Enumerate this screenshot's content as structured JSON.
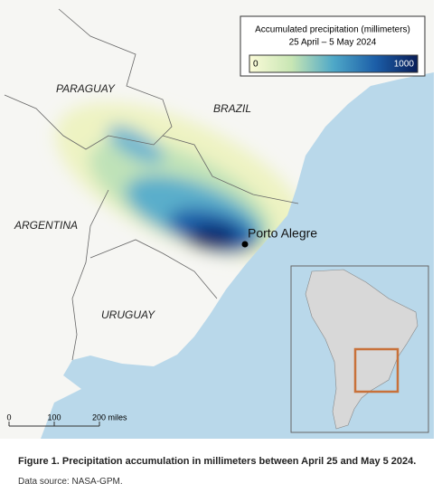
{
  "legend": {
    "title": "Accumulated precipitation (millimeters)",
    "subtitle": "25 April – 5 May 2024",
    "min": 0,
    "max": 1000
  },
  "labels": {
    "paraguay": "PARAGUAY",
    "brazil": "BRAZIL",
    "argentina": "ARGENTINA",
    "uruguay": "URUGUAY",
    "city": "Porto Alegre"
  },
  "scale_bar": {
    "ticks": [
      0,
      100,
      {
        "value": 200,
        "label": "200 miles"
      }
    ]
  },
  "caption": "Figure 1. Precipitation accumulation in millimeters between April 25 and May 5 2024.",
  "source": "Data source: NASA-GPM."
}
